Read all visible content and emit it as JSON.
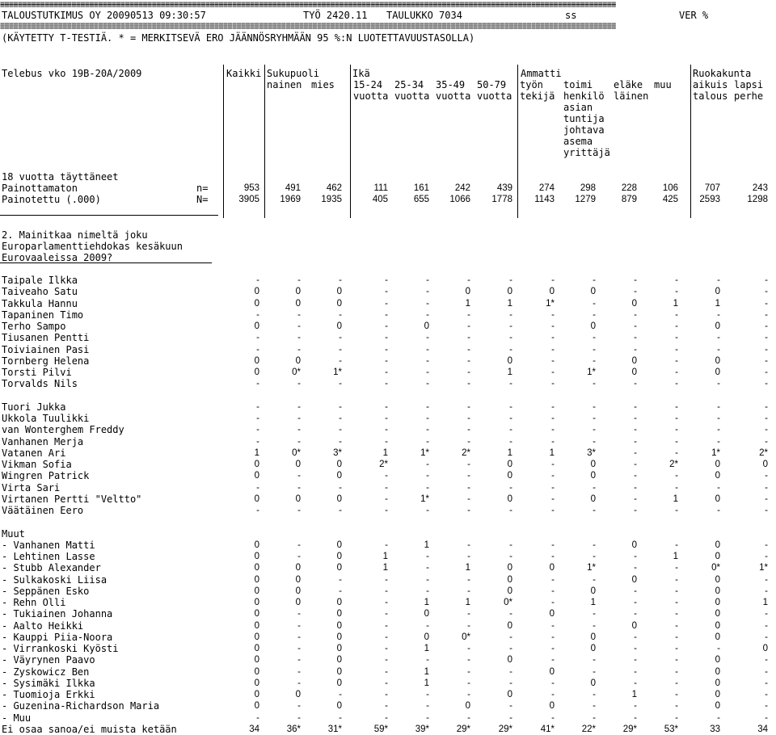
{
  "header": {
    "top_rule": "==========================================================================================================================================",
    "line1": {
      "org": "TALOUSTUTKIMUS OY 20090513 09:30:57",
      "job": "TYÖ 2420.11",
      "table": "TAULUKKO 7034",
      "ss": "ss",
      "ver": "VER %"
    },
    "mid_rule": "==========================================================================================================================================",
    "line2": "(KÄYTETTY T-TESTIÄ. * = MERKITSEVÄ ERO JÄÄNNÖSRYHMÄÄN 95 %:N LUOTETTAVUUSTASOLLA)"
  },
  "survey": "Telebus vko 19B-20A/2009",
  "groups": {
    "kaikki": "Kaikki",
    "sukupuoli": "Sukupuoli",
    "ika": "Ikä",
    "ammatti": "Ammatti",
    "ruokakunta": "Ruokakunta"
  },
  "subheads": {
    "nainen": "nainen",
    "mies": "mies",
    "a1524": [
      "15-24",
      "vuotta"
    ],
    "a2534": [
      "25-34",
      "vuotta"
    ],
    "a3549": [
      "35-49",
      "vuotta"
    ],
    "a5079": [
      "50-79",
      "vuotta"
    ],
    "tyon": [
      "työn",
      "tekijä"
    ],
    "toimi": [
      "toimi",
      "henkilö",
      "asian",
      "tuntija",
      "johtava",
      "asema",
      "yrittäjä"
    ],
    "elake": [
      "eläke",
      "läinen"
    ],
    "muu": "muu",
    "aikuis": [
      "aikuis",
      "talous"
    ],
    "lapsi": [
      "lapsi",
      "perhe"
    ]
  },
  "base": {
    "label": "18 vuotta täyttäneet",
    "rows": [
      {
        "label": "Painottamaton",
        "sym": "n=",
        "values": [
          "953",
          "491",
          "462",
          "111",
          "161",
          "242",
          "439",
          "274",
          "298",
          "228",
          "106",
          "707",
          "243"
        ]
      },
      {
        "label": "Painotettu (.000)",
        "sym": "N=",
        "values": [
          "3905",
          "1969",
          "1935",
          "405",
          "655",
          "1066",
          "1778",
          "1143",
          "1279",
          "879",
          "425",
          "2593",
          "1298"
        ]
      }
    ]
  },
  "question": [
    "2. Mainitkaa nimeltä joku",
    "Europarlamenttiehdokas kesäkuun",
    "Eurovaaleissa 2009?"
  ],
  "rows": [
    {
      "label": "Taipale Ilkka",
      "values": [
        "-",
        "-",
        "-",
        "-",
        "-",
        "-",
        "-",
        "-",
        "-",
        "-",
        "-",
        "-",
        "-"
      ]
    },
    {
      "label": "Taiveaho Satu",
      "values": [
        "0",
        "0",
        "0",
        "-",
        "-",
        "0",
        "0",
        "0",
        "0",
        "-",
        "-",
        "0",
        "-"
      ]
    },
    {
      "label": "Takkula Hannu",
      "values": [
        "0",
        "0",
        "0",
        "-",
        "-",
        "1",
        "1",
        "1*",
        "-",
        "0",
        "1",
        "1",
        "-"
      ]
    },
    {
      "label": "Tapaninen Timo",
      "values": [
        "-",
        "-",
        "-",
        "-",
        "-",
        "-",
        "-",
        "-",
        "-",
        "-",
        "-",
        "-",
        "-"
      ]
    },
    {
      "label": "Terho Sampo",
      "values": [
        "0",
        "-",
        "0",
        "-",
        "0",
        "-",
        "-",
        "-",
        "0",
        "-",
        "-",
        "0",
        "-"
      ]
    },
    {
      "label": "Tiusanen Pentti",
      "values": [
        "-",
        "-",
        "-",
        "-",
        "-",
        "-",
        "-",
        "-",
        "-",
        "-",
        "-",
        "-",
        "-"
      ]
    },
    {
      "label": "Toiviainen Pasi",
      "values": [
        "-",
        "-",
        "-",
        "-",
        "-",
        "-",
        "-",
        "-",
        "-",
        "-",
        "-",
        "-",
        "-"
      ]
    },
    {
      "label": "Tornberg Helena",
      "values": [
        "0",
        "0",
        "-",
        "-",
        "-",
        "-",
        "0",
        "-",
        "-",
        "0",
        "-",
        "0",
        "-"
      ]
    },
    {
      "label": "Torsti Pilvi",
      "values": [
        "0",
        "0*",
        "1*",
        "-",
        "-",
        "-",
        "1",
        "-",
        "1*",
        "0",
        "-",
        "0",
        "-"
      ]
    },
    {
      "label": "Torvalds Nils",
      "values": [
        "-",
        "-",
        "-",
        "-",
        "-",
        "-",
        "-",
        "-",
        "-",
        "-",
        "-",
        "-",
        "-"
      ]
    },
    {
      "label": "",
      "values": []
    },
    {
      "label": "Tuori Jukka",
      "values": [
        "-",
        "-",
        "-",
        "-",
        "-",
        "-",
        "-",
        "-",
        "-",
        "-",
        "-",
        "-",
        "-"
      ]
    },
    {
      "label": "Ukkola Tuulikki",
      "values": [
        "-",
        "-",
        "-",
        "-",
        "-",
        "-",
        "-",
        "-",
        "-",
        "-",
        "-",
        "-",
        "-"
      ]
    },
    {
      "label": "van Wonterghem Freddy",
      "values": [
        "-",
        "-",
        "-",
        "-",
        "-",
        "-",
        "-",
        "-",
        "-",
        "-",
        "-",
        "-",
        "-"
      ]
    },
    {
      "label": "Vanhanen Merja",
      "values": [
        "-",
        "-",
        "-",
        "-",
        "-",
        "-",
        "-",
        "-",
        "-",
        "-",
        "-",
        "-",
        "-"
      ]
    },
    {
      "label": "Vatanen Ari",
      "values": [
        "1",
        "0*",
        "3*",
        "1",
        "1*",
        "2*",
        "1",
        "1",
        "3*",
        "-",
        "-",
        "1*",
        "2*"
      ]
    },
    {
      "label": "Vikman Sofia",
      "values": [
        "0",
        "0",
        "0",
        "2*",
        "-",
        "-",
        "0",
        "-",
        "0",
        "-",
        "2*",
        "0",
        "0"
      ]
    },
    {
      "label": "Wingren Patrick",
      "values": [
        "0",
        "-",
        "0",
        "-",
        "-",
        "-",
        "0",
        "-",
        "0",
        "-",
        "-",
        "0",
        "-"
      ]
    },
    {
      "label": "Virta Sari",
      "values": [
        "-",
        "-",
        "-",
        "-",
        "-",
        "-",
        "-",
        "-",
        "-",
        "-",
        "-",
        "-",
        "-"
      ]
    },
    {
      "label": "Virtanen Pertti \"Veltto\"",
      "values": [
        "0",
        "0",
        "0",
        "-",
        "1*",
        "-",
        "0",
        "-",
        "0",
        "-",
        "1",
        "0",
        "-"
      ]
    },
    {
      "label": "Väätäinen Eero",
      "values": [
        "-",
        "-",
        "-",
        "-",
        "-",
        "-",
        "-",
        "-",
        "-",
        "-",
        "-",
        "-",
        "-"
      ]
    },
    {
      "label": "",
      "values": []
    },
    {
      "label": "Muut",
      "values": []
    },
    {
      "label": "- Vanhanen Matti",
      "values": [
        "0",
        "-",
        "0",
        "-",
        "1",
        "-",
        "-",
        "-",
        "-",
        "0",
        "-",
        "0",
        "-"
      ]
    },
    {
      "label": "- Lehtinen Lasse",
      "values": [
        "0",
        "-",
        "0",
        "1",
        "-",
        "-",
        "-",
        "-",
        "-",
        "-",
        "1",
        "0",
        "-"
      ]
    },
    {
      "label": "- Stubb Alexander",
      "values": [
        "0",
        "0",
        "0",
        "1",
        "-",
        "1",
        "0",
        "0",
        "1*",
        "-",
        "-",
        "0*",
        "1*"
      ]
    },
    {
      "label": "- Sulkakoski Liisa",
      "values": [
        "0",
        "0",
        "-",
        "-",
        "-",
        "-",
        "0",
        "-",
        "-",
        "0",
        "-",
        "0",
        "-"
      ]
    },
    {
      "label": "- Seppänen Esko",
      "values": [
        "0",
        "0",
        "-",
        "-",
        "-",
        "-",
        "0",
        "-",
        "0",
        "-",
        "-",
        "0",
        "-"
      ]
    },
    {
      "label": "- Rehn Olli",
      "values": [
        "0",
        "0",
        "0",
        "-",
        "1",
        "1",
        "0*",
        "-",
        "1",
        "-",
        "-",
        "0",
        "1"
      ]
    },
    {
      "label": "- Tukiainen Johanna",
      "values": [
        "0",
        "-",
        "0",
        "-",
        "0",
        "-",
        "-",
        "0",
        "-",
        "-",
        "-",
        "0",
        "-"
      ]
    },
    {
      "label": "- Aalto Heikki",
      "values": [
        "0",
        "-",
        "0",
        "-",
        "-",
        "-",
        "0",
        "-",
        "-",
        "0",
        "-",
        "0",
        "-"
      ]
    },
    {
      "label": "- Kauppi Piia-Noora",
      "values": [
        "0",
        "-",
        "0",
        "-",
        "0",
        "0*",
        "-",
        "-",
        "0",
        "-",
        "-",
        "0",
        "-"
      ]
    },
    {
      "label": "- Virrankoski Kyösti",
      "values": [
        "0",
        "-",
        "0",
        "-",
        "1",
        "-",
        "-",
        "-",
        "0",
        "-",
        "-",
        "-",
        "0"
      ]
    },
    {
      "label": "- Väyrynen Paavo",
      "values": [
        "0",
        "-",
        "0",
        "-",
        "-",
        "-",
        "0",
        "-",
        "-",
        "-",
        "-",
        "0",
        "-"
      ]
    },
    {
      "label": "- Zyskowicz Ben",
      "values": [
        "0",
        "-",
        "0",
        "-",
        "1",
        "-",
        "-",
        "0",
        "-",
        "-",
        "-",
        "0",
        "-"
      ]
    },
    {
      "label": "- Sysimäki Ilkka",
      "values": [
        "0",
        "-",
        "0",
        "-",
        "1",
        "-",
        "-",
        "-",
        "0",
        "-",
        "-",
        "0",
        "-"
      ]
    },
    {
      "label": "- Tuomioja Erkki",
      "values": [
        "0",
        "0",
        "-",
        "-",
        "-",
        "-",
        "0",
        "-",
        "-",
        "1",
        "-",
        "0",
        "-"
      ]
    },
    {
      "label": "- Guzenina-Richardson Maria",
      "values": [
        "0",
        "-",
        "0",
        "-",
        "-",
        "0",
        "-",
        "0",
        "-",
        "-",
        "-",
        "0",
        "-"
      ]
    },
    {
      "label": "- Muu",
      "values": [
        "-",
        "-",
        "-",
        "-",
        "-",
        "-",
        "-",
        "-",
        "-",
        "-",
        "-",
        "-",
        "-"
      ]
    },
    {
      "label": "Ei osaa sanoa/ei muista ketään",
      "values": [
        "34",
        "36*",
        "31*",
        "59*",
        "39*",
        "29*",
        "29*",
        "41*",
        "22*",
        "29*",
        "53*",
        "33",
        "34"
      ]
    }
  ]
}
